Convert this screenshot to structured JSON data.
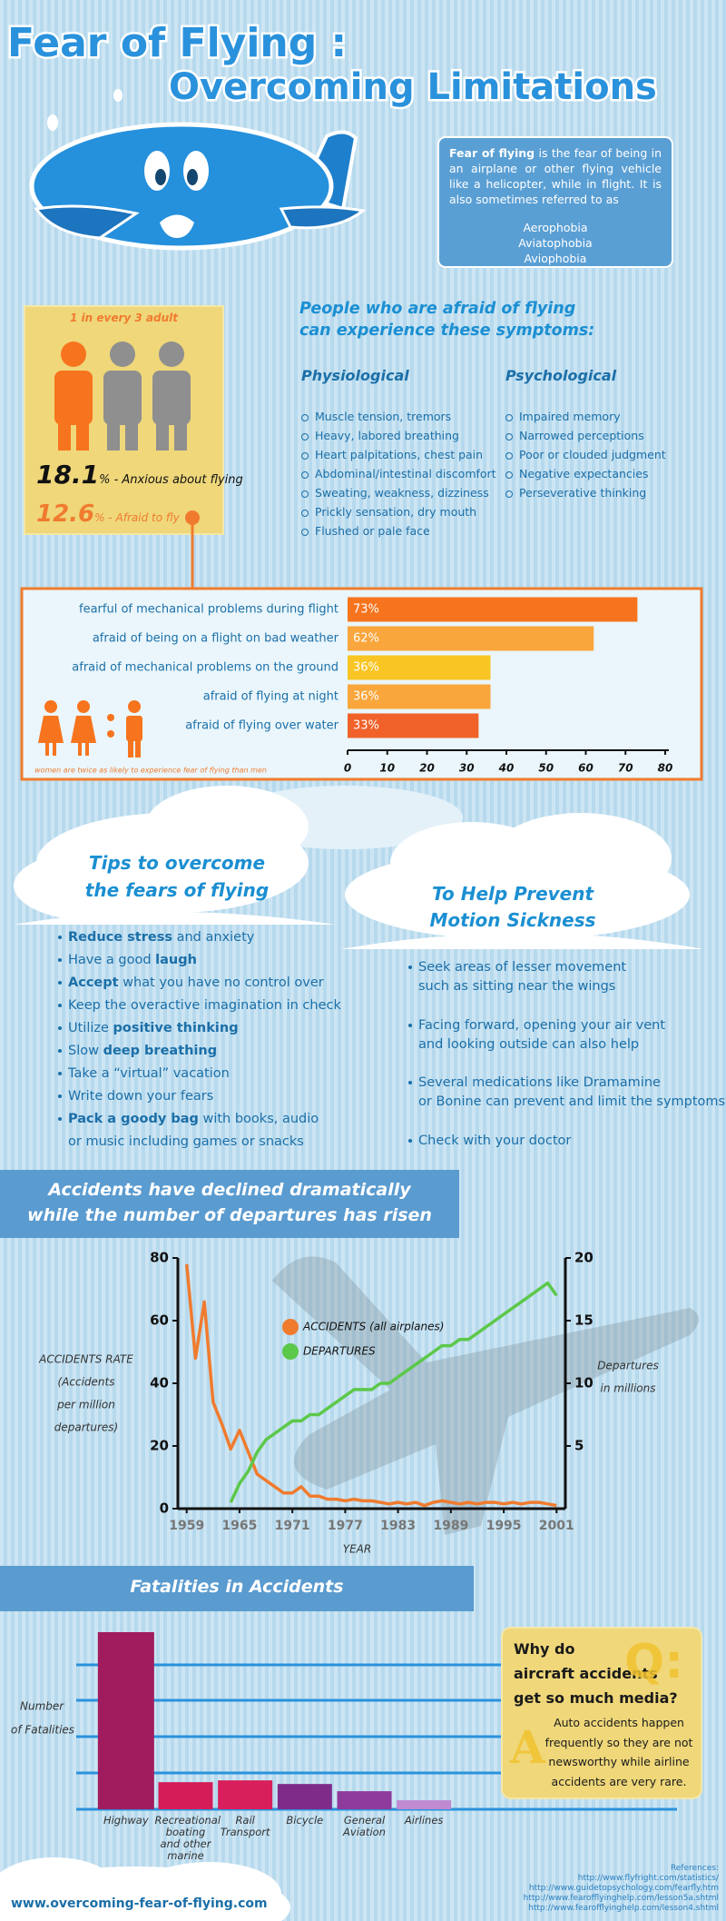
{
  "header": {
    "title": [
      "Fear of Flying :",
      "Overcoming Limitations"
    ]
  },
  "definition": {
    "term": "Fear of flying",
    "text": "is the fear of being in an airplane or other flying vehicle like a helicopter, while in flight. It is also sometimes referred to as",
    "names": [
      "Aerophobia",
      "Aviatophobia",
      "Aviophobia"
    ]
  },
  "stats": {
    "ratio": "1 in every 3 adult",
    "anxious": {
      "value": 18.1,
      "label": "% - Anxious about flying"
    },
    "afraid": {
      "value": 12.6,
      "label": "% - Afraid to fly"
    }
  },
  "symptoms": {
    "heading": [
      "People who are afraid of flying",
      "can experience these symptoms:"
    ],
    "groups": [
      {
        "title": "Physiological",
        "items": [
          "Muscle tension, tremors",
          "Heavy, labored breathing",
          "Heart palpitations, chest pain",
          "Abdominal/intestinal discomfort",
          "Sweating, weakness, dizziness",
          "Prickly sensation, dry mouth",
          "Flushed or pale face"
        ]
      },
      {
        "title": "Psychological",
        "items": [
          "Impaired memory",
          "Narrowed perceptions",
          "Poor or clouded judgment",
          "Negative expectancies",
          "Perseverative thinking"
        ]
      }
    ]
  },
  "tips": {
    "heading": [
      "Tips to overcome",
      "the fears of flying"
    ],
    "items": [
      [
        [
          {
            "text": "Reduce stress",
            "bold": true
          },
          {
            "text": " and anxiety",
            "bold": false
          }
        ]
      ],
      [
        [
          {
            "text": "Have a good ",
            "bold": false
          },
          {
            "text": "laugh",
            "bold": true
          }
        ]
      ],
      [
        [
          {
            "text": "Accept",
            "bold": true
          },
          {
            "text": " what you have no control over",
            "bold": false
          }
        ]
      ],
      [
        [
          {
            "text": "Keep the overactive imagination in check",
            "bold": false
          }
        ]
      ],
      [
        [
          {
            "text": "Utilize ",
            "bold": false
          },
          {
            "text": "positive thinking",
            "bold": true
          }
        ]
      ],
      [
        [
          {
            "text": "Slow ",
            "bold": false
          },
          {
            "text": "deep breathing",
            "bold": true
          }
        ]
      ],
      [
        [
          {
            "text": "Take a “virtual” vacation",
            "bold": false
          }
        ]
      ],
      [
        [
          {
            "text": "Write down your fears",
            "bold": false
          }
        ]
      ],
      [
        [
          {
            "text": "Pack a goody bag",
            "bold": true
          },
          {
            "text": " with books, audio",
            "bold": false
          }
        ],
        [
          {
            "text": "or music including games or snacks",
            "bold": false
          }
        ]
      ]
    ]
  },
  "motion_sickness": {
    "heading": [
      "To Help Prevent",
      "Motion Sickness"
    ],
    "items": [
      [
        "Seek areas of lesser movement",
        "such as sitting near the wings"
      ],
      [
        "Facing forward, opening your air vent",
        "and looking outside can also help"
      ],
      [
        "Several medications like Dramamine",
        "or Bonine can prevent and limit the symptoms"
      ],
      [
        "Check with your doctor"
      ]
    ]
  },
  "qa": {
    "q_mark": "Q:",
    "a_mark": "A",
    "question": [
      "Why do",
      "aircraft accidents",
      "get so much media?"
    ],
    "answer": [
      "Auto accidents happen",
      "frequently so they are not",
      "newsworthy while airline",
      "accidents are very rare."
    ]
  },
  "references": {
    "title": "References:",
    "links": [
      "http://www.flyfright.com/statistics/",
      "http://www.guidetopsychology.com/fearfly.htm",
      "http://www.fearofflyinghelp.com/lesson5a.shtml",
      "http://www.fearofflyinghelp.com/lesson4.shtml"
    ]
  },
  "site": "www.overcoming-fear-of-flying.com",
  "chart_data": [
    {
      "type": "bar",
      "orientation": "horizontal",
      "categories": [
        "fearful of mechanical problems during flight",
        "afraid of being on a flight on bad weather",
        "afraid of mechanical problems on the ground",
        "afraid of flying at night",
        "afraid of flying over water"
      ],
      "values": [
        73,
        62,
        36,
        36,
        33
      ],
      "value_labels": [
        "73%",
        "62%",
        "36%",
        "36%",
        "33%"
      ],
      "colors": [
        "#f7741e",
        "#f9a63c",
        "#f8c524",
        "#f9a63c",
        "#f0622a"
      ],
      "xlim": [
        0,
        80
      ],
      "xticks": [
        0,
        10,
        20,
        30,
        40,
        50,
        60,
        70,
        80
      ],
      "note": "women are twice as likely to experience fear of flying than men"
    },
    {
      "type": "line",
      "title": [
        "Accidents have declined dramatically",
        "while the number of departures has risen"
      ],
      "x": [
        1959,
        1960,
        1961,
        1962,
        1963,
        1964,
        1965,
        1966,
        1967,
        1968,
        1969,
        1970,
        1971,
        1972,
        1973,
        1974,
        1975,
        1976,
        1977,
        1978,
        1979,
        1980,
        1981,
        1982,
        1983,
        1984,
        1985,
        1986,
        1987,
        1988,
        1989,
        1990,
        1991,
        1992,
        1993,
        1994,
        1995,
        1996,
        1997,
        1998,
        1999,
        2000,
        2001
      ],
      "xlim": [
        1958,
        2002
      ],
      "xticks": [
        1959,
        1965,
        1971,
        1977,
        1983,
        1989,
        1995,
        2001
      ],
      "x_label": "YEAR",
      "ylim": [
        0,
        80
      ],
      "yticks": [
        0,
        20,
        40,
        60,
        80
      ],
      "y_label": [
        "ACCIDENTS RATE",
        "(Accidents",
        "per million",
        "departures)"
      ],
      "y2lim": [
        0,
        20
      ],
      "y2ticks": [
        5,
        10,
        15,
        20
      ],
      "y2_label": [
        "Departures",
        "in millions"
      ],
      "series": [
        {
          "name": "ACCIDENTS (all airplanes)",
          "color": "#f07b2e",
          "values": [
            78,
            48,
            66,
            34,
            27,
            19,
            25,
            18,
            11,
            9,
            7,
            5,
            5,
            7,
            4,
            4,
            3,
            3,
            2.5,
            3,
            2.5,
            2.5,
            2,
            1.5,
            2,
            1.5,
            2,
            1,
            2,
            2.5,
            2,
            1.5,
            2,
            1.5,
            2,
            2,
            1.5,
            2,
            1.5,
            2,
            2,
            1.5,
            1
          ]
        },
        {
          "name": "DEPARTURES",
          "color": "#5cc84a",
          "axis": "y2",
          "values": [
            null,
            null,
            null,
            null,
            null,
            0.5,
            2,
            3,
            4.5,
            5.5,
            6,
            6.5,
            7,
            7,
            7.5,
            7.5,
            8,
            8.5,
            9,
            9.5,
            9.5,
            9.5,
            10,
            10,
            10.5,
            11,
            11.5,
            12,
            12.5,
            13,
            13,
            13.5,
            13.5,
            14,
            14.5,
            15,
            15.5,
            16,
            16.5,
            17,
            17.5,
            18,
            17
          ]
        }
      ]
    },
    {
      "type": "bar",
      "orientation": "vertical",
      "title": "Fatalities in Accidents",
      "y_label": [
        "Number",
        "of Fatalities"
      ],
      "categories": [
        "Highway",
        "Recreational boating and other marine",
        "Rail Transport",
        "Bicycle",
        "General Aviation",
        "Airlines"
      ],
      "values": [
        4.9,
        0.75,
        0.8,
        0.7,
        0.5,
        0.25
      ],
      "colors": [
        "#a01c5e",
        "#d41c58",
        "#d81e5b",
        "#7e2b8a",
        "#8f3a9d",
        "#c08ad3"
      ],
      "ylim": [
        0,
        5
      ]
    }
  ]
}
